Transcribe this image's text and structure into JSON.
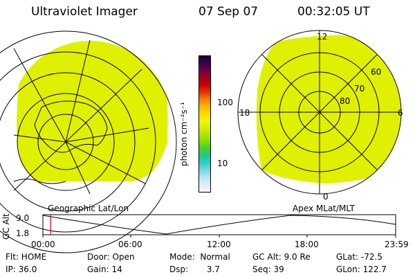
{
  "header": {
    "instrument": "Ultraviolet Imager",
    "date": "07 Sep 07",
    "time": "00:32:05 UT"
  },
  "colorbar": {
    "unit_label": "photon cm⁻²s⁻¹",
    "ticks": [
      "100",
      "10"
    ],
    "colors": [
      "#1e0032",
      "#3a0050",
      "#70004a",
      "#a0001c",
      "#c80000",
      "#e83000",
      "#f57c00",
      "#ffb000",
      "#ffd800",
      "#f4f400",
      "#d4f000",
      "#b4e400",
      "#7ce000",
      "#3ad03a",
      "#22c890",
      "#30d0d0",
      "#7ad8e8",
      "#b8e4f0",
      "#e0eef4",
      "#f4f8fa"
    ]
  },
  "left_panel": {
    "caption": "Geographic Lat/Lon",
    "fill_color": "#dff000"
  },
  "right_panel": {
    "caption": "Apex MLat/MLT",
    "fill_color": "#dff000",
    "mlt_labels": {
      "top": "12",
      "bottom": "0",
      "left": "18",
      "right": "6"
    },
    "lat_labels": [
      "60",
      "70",
      "80"
    ]
  },
  "altitude_plot": {
    "ylabel": "GC Alt",
    "y_ticks": [
      "9.0",
      "1.8"
    ],
    "x_ticks": [
      "00:00",
      "06:00",
      "12:00",
      "18:00",
      "23:59"
    ],
    "current_marker_hour": 0.53,
    "marker_color": "#cc0000"
  },
  "info": {
    "row1": {
      "flt": "Flt: HOME",
      "door": "Door: Open",
      "mode": "Mode:  Normal",
      "gc_alt": "GC Alt: 9.0 Re",
      "glat": "GLat: -72.5"
    },
    "row2": {
      "ip": "IP: 36.0",
      "gain": "Gain: 14",
      "dsp": "Dsp:       3.7",
      "seq": "Seq: 39",
      "glon": "GLon: 122.7"
    }
  }
}
